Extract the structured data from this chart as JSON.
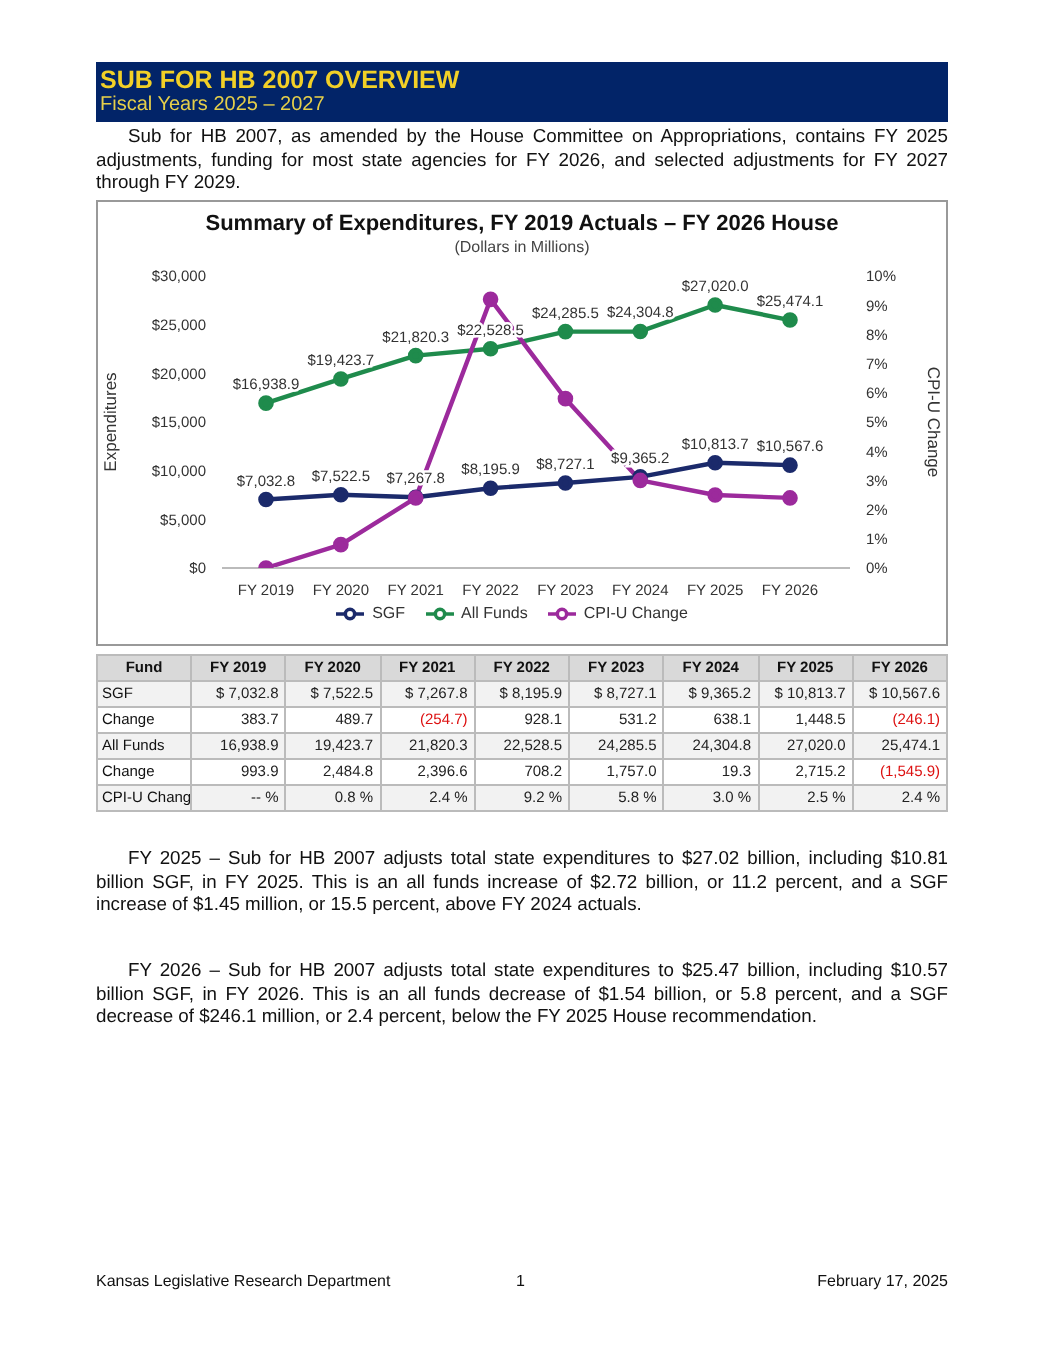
{
  "chart_data": [
    {
      "type": "line",
      "title": "Summary of Expenditures, FY 2019 Actuals – FY 2026 House",
      "subtitle": "(Dollars in Millions)",
      "categories": [
        "FY 2019",
        "FY 2020",
        "FY 2021",
        "FY 2022",
        "FY 2023",
        "FY 2024",
        "FY 2025",
        "FY 2026"
      ],
      "series": [
        {
          "name": "SGF",
          "color": "#1b2a6b",
          "values": [
            7032.8,
            7522.5,
            7267.8,
            8195.9,
            8727.1,
            9365.2,
            10813.7,
            10567.6
          ],
          "value_labels": [
            "$7,032.8",
            "$7,522.5",
            "$7,267.8",
            "$8,195.9",
            "$8,727.1",
            "$9,365.2",
            "$10,813.7",
            "$10,567.6"
          ]
        },
        {
          "name": "All Funds",
          "color": "#1f8b4c",
          "values": [
            16938.9,
            19423.7,
            21820.3,
            22528.5,
            24285.5,
            24304.8,
            27020.0,
            25474.1
          ],
          "value_labels": [
            "$16,938.9",
            "$19,423.7",
            "$21,820.3",
            "$22,528.5",
            "$24,285.5",
            "$24,304.8",
            "$27,020.0",
            "$25,474.1"
          ]
        },
        {
          "name": "CPI-U Change",
          "color": "#9c2a9c",
          "axis": "y2",
          "values": [
            0,
            0.8,
            2.4,
            9.2,
            5.8,
            3.0,
            2.5,
            2.4
          ]
        }
      ],
      "ylabel": "Expenditures",
      "y2label": "CPI-U Change",
      "ylim": [
        0,
        30000
      ],
      "yticks": [
        {
          "value": 0,
          "label": "$0"
        },
        {
          "value": 5000,
          "label": "$5,000"
        },
        {
          "value": 10000,
          "label": "$10,000"
        },
        {
          "value": 15000,
          "label": "$15,000"
        },
        {
          "value": 20000,
          "label": "$20,000"
        },
        {
          "value": 25000,
          "label": "$25,000"
        },
        {
          "value": 30000,
          "label": "$30,000"
        }
      ],
      "y2lim": [
        0,
        10
      ],
      "y2ticks": [
        {
          "value": 0,
          "label": "0%"
        },
        {
          "value": 1,
          "label": "1%"
        },
        {
          "value": 2,
          "label": "2%"
        },
        {
          "value": 3,
          "label": "3%"
        },
        {
          "value": 4,
          "label": "4%"
        },
        {
          "value": 5,
          "label": "5%"
        },
        {
          "value": 6,
          "label": "6%"
        },
        {
          "value": 7,
          "label": "7%"
        },
        {
          "value": 8,
          "label": "8%"
        },
        {
          "value": 9,
          "label": "9%"
        },
        {
          "value": 10,
          "label": "10%"
        }
      ],
      "legend": "bottom",
      "marker": "circle",
      "line_style": "solid",
      "annotations": [
        "SUB FOR HB 2007 OVERVIEW",
        "Fiscal Years 2025 – 2027",
        "Sub for HB 2007, as amended by the House Committee on Appropriations, contains FY 2025 adjustments, funding for most state agencies for FY 2026, and selected adjustments for FY 2027 through FY 2029.",
        "FY 2025 – Sub for HB 2007 adjusts total state expenditures to $27.02 billion, including $10.81 billion SGF, in FY 2025. This is an all funds increase of $2.72 billion, or 11.2 percent, and a SGF increase of $1.45 million, or 15.5 percent, above FY 2024 actuals.",
        "FY 2026 – Sub for HB 2007 adjusts total state expenditures to $25.47 billion, including $10.57 billion SGF, in FY 2026. This is an all funds decrease of $1.54 billion, or 5.8 percent, and a SGF decrease of $246.1 million, or 2.4 percent, below the FY 2025 House recommendation.",
        "Kansas Legislative Research Department",
        "1",
        "February 17, 2025"
      ]
    },
    {
      "type": "heatmap",
      "ylabel": "Fund",
      "categories": [
        "FY 2019",
        "FY 2020",
        "FY 2021",
        "FY 2022",
        "FY 2023",
        "FY 2024",
        "FY 2025",
        "FY 2026"
      ],
      "y_categories": [
        "SGF",
        "Change",
        "All Funds",
        "Change",
        "CPI-U Chang"
      ],
      "cells": [
        [
          7032.8,
          7522.5,
          7267.8,
          8195.9,
          8727.1,
          9365.2,
          10813.7,
          10567.6
        ],
        [
          383.7,
          489.7,
          -254.7,
          928.1,
          531.2,
          638.1,
          1448.5,
          -246.1
        ],
        [
          16938.9,
          19423.7,
          21820.3,
          22528.5,
          24285.5,
          24304.8,
          27020.0,
          25474.1
        ],
        [
          993.9,
          2484.8,
          2396.6,
          708.2,
          1757.0,
          19.3,
          2715.2,
          -1545.9
        ],
        [
          null,
          0.8,
          2.4,
          9.2,
          5.8,
          3.0,
          2.5,
          2.4
        ]
      ],
      "cell_labels": [
        [
          "$ 7,032.8",
          "$ 7,522.5",
          "$ 7,267.8",
          "$ 8,195.9",
          "$ 8,727.1",
          "$ 9,365.2",
          "$ 10,813.7",
          "$ 10,567.6"
        ],
        [
          "383.7",
          "489.7",
          "(254.7)",
          "928.1",
          "531.2",
          "638.1",
          "1,448.5",
          "(246.1)"
        ],
        [
          "16,938.9",
          "19,423.7",
          "21,820.3",
          "22,528.5",
          "24,285.5",
          "24,304.8",
          "27,020.0",
          "25,474.1"
        ],
        [
          "993.9",
          "2,484.8",
          "2,396.6",
          "708.2",
          "1,757.0",
          "19.3",
          "2,715.2",
          "(1,545.9)"
        ],
        [
          "-- %",
          "0.8 %",
          "2.4 %",
          "9.2 %",
          "5.8 %",
          "3.0 %",
          "2.5 %",
          "2.4 %"
        ]
      ]
    }
  ]
}
